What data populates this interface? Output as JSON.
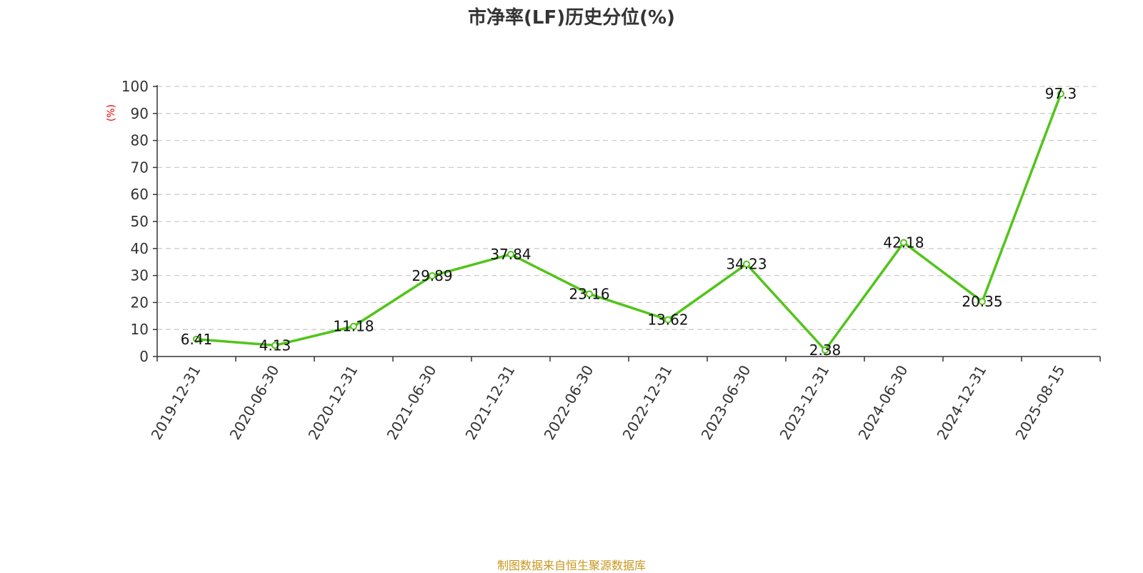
{
  "title": "市净率(LF)历史分位(%)",
  "footer": {
    "source": "制图数据来自恒生聚源数据库",
    "color": "#c8961e"
  },
  "chart_data": {
    "type": "line",
    "title": "市净率(LF)历史分位(%)",
    "xlabel": "",
    "ylabel": "(%)",
    "ylim": [
      0,
      100
    ],
    "yticks": [
      0,
      10,
      20,
      30,
      40,
      50,
      60,
      70,
      80,
      90,
      100
    ],
    "grid": true,
    "categories": [
      "2019-12-31",
      "2020-06-30",
      "2020-12-31",
      "2021-06-30",
      "2021-12-31",
      "2022-06-30",
      "2022-12-31",
      "2023-06-30",
      "2023-12-31",
      "2024-06-30",
      "2024-12-31",
      "2025-08-15"
    ],
    "series": [
      {
        "values": [
          6.41,
          4.13,
          11.18,
          29.89,
          37.84,
          23.16,
          13.62,
          34.23,
          2.38,
          42.18,
          20.35,
          97.3
        ],
        "labels": [
          "6.41",
          "4.13",
          "11.18",
          "29.89",
          "37.84",
          "23.16",
          "13.62",
          "34.23",
          "2.38",
          "42.18",
          "20.35",
          "97.3"
        ],
        "color": "#52c41a"
      }
    ],
    "ylabel_color": "#e60000"
  }
}
